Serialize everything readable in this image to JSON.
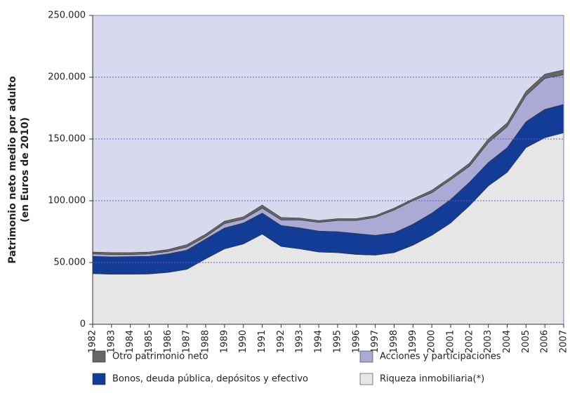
{
  "chart_data": {
    "type": "stacked_area",
    "y_label": [
      "Patrimonio neto medio por adulto",
      "(en Euros de 2010)"
    ],
    "x": [
      1982,
      1983,
      1984,
      1985,
      1986,
      1987,
      1988,
      1989,
      1990,
      1991,
      1992,
      1993,
      1994,
      1995,
      1996,
      1997,
      1998,
      1999,
      2000,
      2001,
      2002,
      2003,
      2004,
      2005,
      2006,
      2007
    ],
    "xlim": [
      1982,
      2007
    ],
    "ylim": [
      0,
      250000
    ],
    "yticks": [
      0,
      {
        "value": 50000,
        "label": "50.000"
      },
      {
        "value": 100000,
        "label": "100.000"
      },
      {
        "value": 150000,
        "label": "150.000"
      },
      {
        "value": 200000,
        "label": "200.000"
      },
      {
        "value": 250000,
        "label": "250.000"
      }
    ],
    "grid": true,
    "background": "#d9d9ee",
    "series": [
      {
        "name": "Riqueza inmobiliaria(*)",
        "color": "#e6e6e6",
        "values": [
          41000,
          40500,
          40500,
          40700,
          42000,
          44500,
          53000,
          61000,
          65000,
          73000,
          63000,
          61000,
          58500,
          58000,
          56500,
          56000,
          58000,
          64000,
          72000,
          82000,
          96000,
          112000,
          123000,
          143000,
          151000,
          155000
        ]
      },
      {
        "name": "Bonos, deuda pública, depósitos y efectivo",
        "color": "#123c96",
        "values": [
          14000,
          14000,
          14300,
          14300,
          15000,
          15500,
          16000,
          17000,
          17000,
          17000,
          17000,
          17000,
          17000,
          17000,
          17000,
          16000,
          16000,
          17000,
          18000,
          19000,
          19000,
          19000,
          20000,
          21000,
          23000,
          23000
        ]
      },
      {
        "name": "Acciones y participaciones",
        "color": "#aaaad4",
        "values": [
          2000,
          2000,
          1700,
          2000,
          2000,
          2500,
          2000,
          3500,
          3000,
          4000,
          4500,
          6500,
          7000,
          9000,
          10500,
          14500,
          18500,
          19000,
          16500,
          16000,
          13000,
          16000,
          17000,
          21000,
          25000,
          24000
        ]
      },
      {
        "name": "Otro patrimonio neto",
        "color": "#666666",
        "values": [
          1500,
          1500,
          1500,
          1500,
          1500,
          2000,
          2000,
          2000,
          2000,
          2500,
          2000,
          1500,
          1500,
          1500,
          1500,
          1500,
          1500,
          1500,
          2000,
          2000,
          2500,
          3000,
          3000,
          3500,
          3500,
          4000
        ]
      }
    ]
  }
}
